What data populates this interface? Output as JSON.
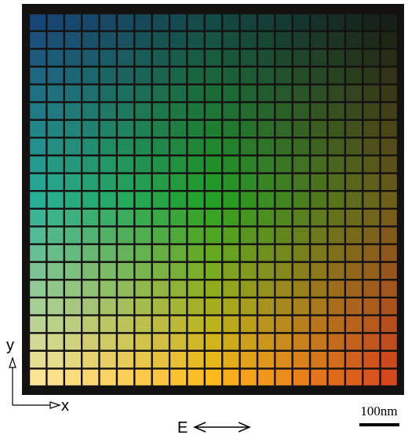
{
  "labels": {
    "y_axis": "y",
    "x_axis": "x",
    "field": "E",
    "scale_bar": "100nm"
  }
}
